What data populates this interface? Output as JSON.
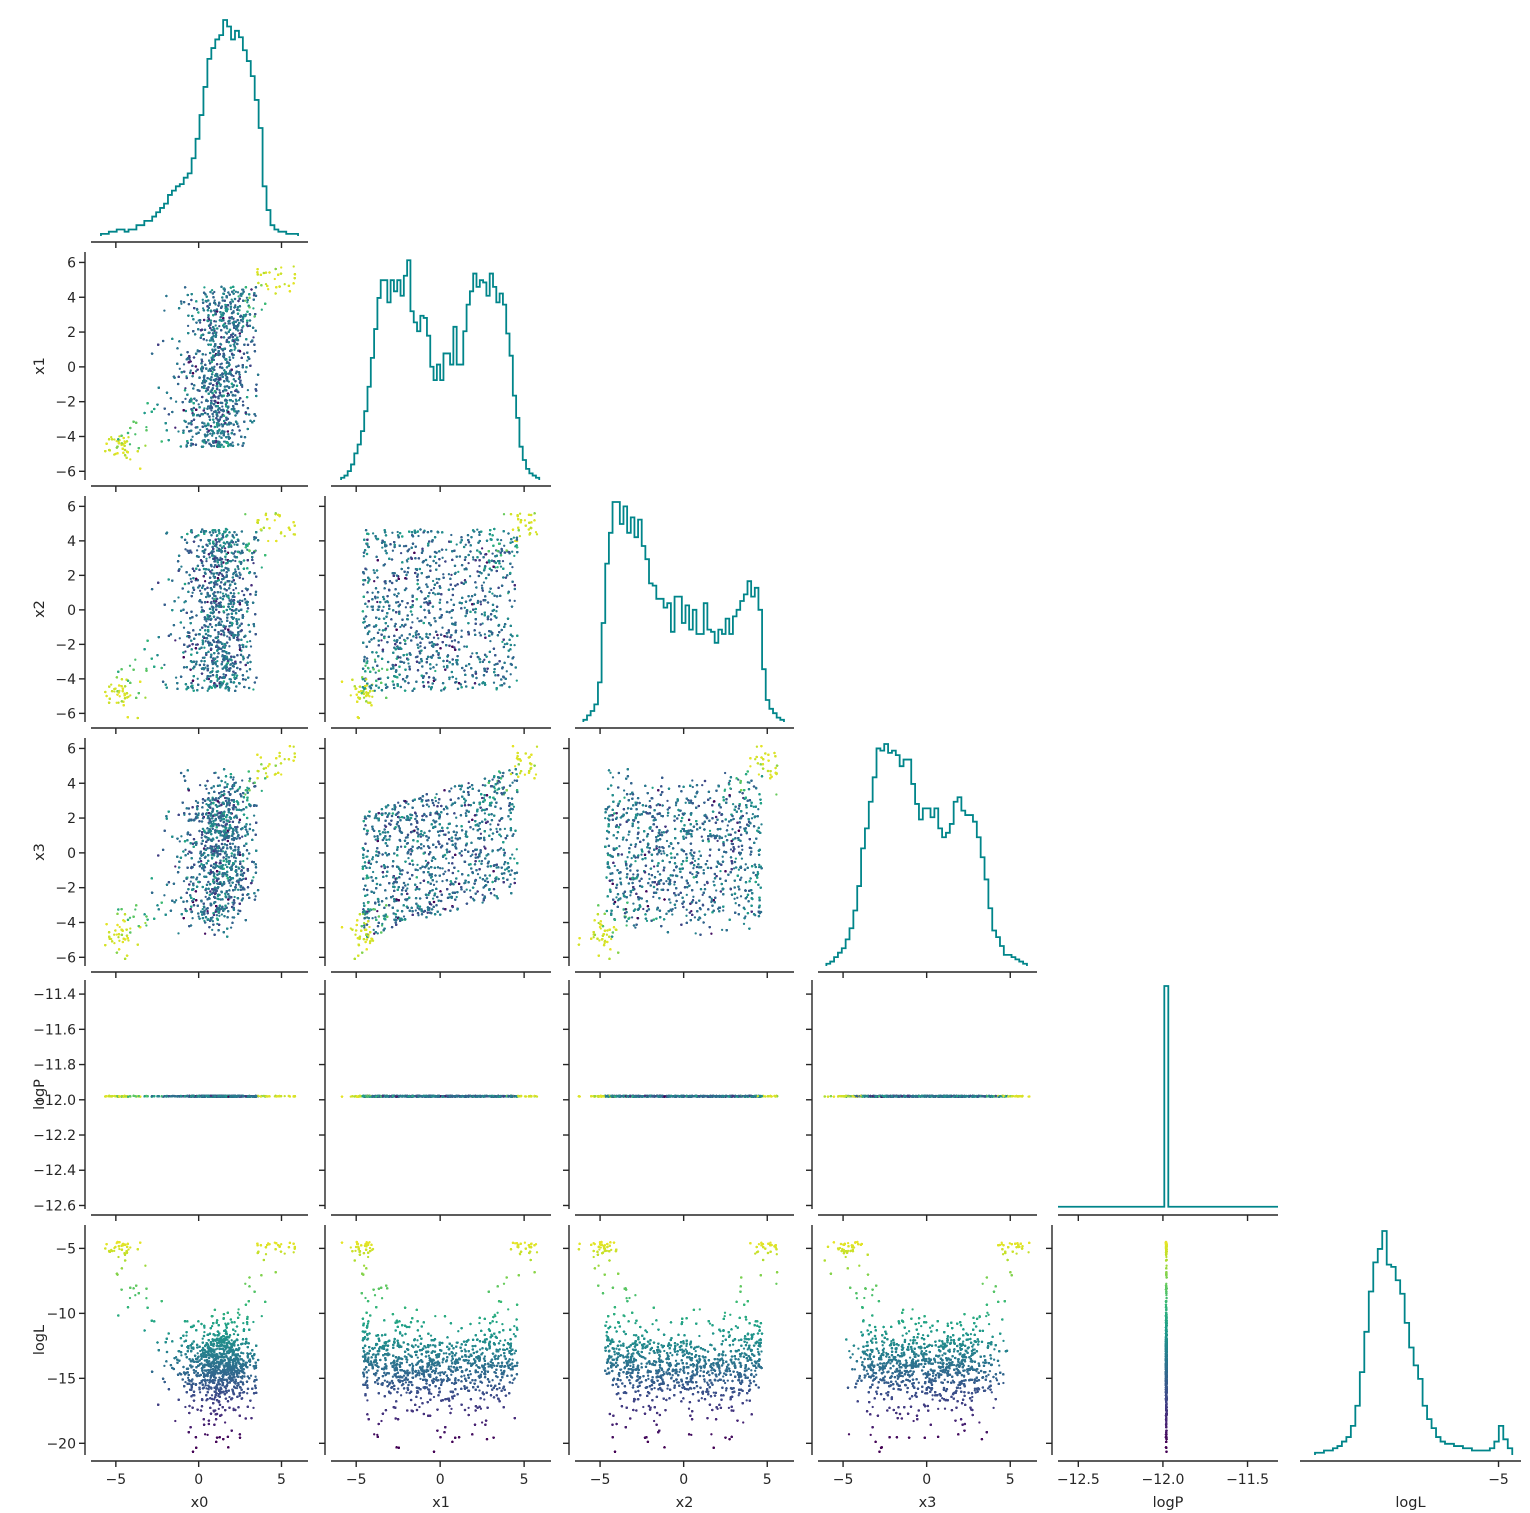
{
  "chart_data": {
    "type": "corner-plot",
    "variables": [
      "x0",
      "x1",
      "x2",
      "x3",
      "logP",
      "logL"
    ],
    "hist_color": "#00858a",
    "scatter_colormap": "viridis",
    "scatter_color_by": "logL",
    "axes": {
      "x0": {
        "range": [
          -6.5,
          6.6
        ],
        "ticks": [
          -5,
          0,
          5
        ],
        "tick_labels": [
          "−5",
          "0",
          "5"
        ]
      },
      "x1": {
        "range": [
          -6.5,
          6.6
        ],
        "ticks": [
          -6,
          -4,
          -2,
          0,
          2,
          4,
          6
        ],
        "tick_labels": [
          "−6",
          "−4",
          "−2",
          "0",
          "2",
          "4",
          "6"
        ],
        "x_tick_labels": [
          "−5",
          "0",
          "5"
        ]
      },
      "x2": {
        "range": [
          -6.5,
          6.6
        ],
        "ticks": [
          -6,
          -4,
          -2,
          0,
          2,
          4,
          6
        ],
        "tick_labels": [
          "−6",
          "−4",
          "−2",
          "0",
          "2",
          "4",
          "6"
        ],
        "x_tick_labels": [
          "−5",
          "0",
          "5"
        ]
      },
      "x3": {
        "range": [
          -6.5,
          6.6
        ],
        "ticks": [
          -6,
          -4,
          -2,
          0,
          2,
          4,
          6
        ],
        "tick_labels": [
          "−6",
          "−4",
          "−2",
          "0",
          "2",
          "4",
          "6"
        ],
        "x_tick_labels": [
          "−5",
          "0",
          "5"
        ]
      },
      "logP": {
        "range": [
          -12.62,
          -11.32
        ],
        "ticks": [
          -12.6,
          -12.4,
          -12.2,
          -12.0,
          -11.8,
          -11.6,
          -11.4
        ],
        "tick_labels": [
          "−12.6",
          "−12.4",
          "−12.2",
          "−12.0",
          "−11.8",
          "−11.6",
          "−11.4"
        ],
        "x_ticks": [
          -12.5,
          -12.0,
          -11.5
        ],
        "x_tick_labels": [
          "−12.5",
          "−12.0",
          "−11.5"
        ],
        "value": -11.98
      },
      "logL": {
        "range": [
          -20.9,
          -3.2
        ],
        "ticks": [
          -20,
          -15,
          -10,
          -5
        ],
        "tick_labels": [
          "−20",
          "−15",
          "−10",
          "−5"
        ]
      }
    },
    "marginals": {
      "x0": {
        "edges_range": [
          -5.9,
          6.0
        ],
        "density": [
          0.01,
          0.01,
          0.02,
          0.02,
          0.03,
          0.03,
          0.02,
          0.03,
          0.03,
          0.05,
          0.05,
          0.07,
          0.07,
          0.09,
          0.11,
          0.13,
          0.15,
          0.19,
          0.21,
          0.23,
          0.24,
          0.27,
          0.29,
          0.36,
          0.45,
          0.56,
          0.69,
          0.82,
          0.87,
          0.91,
          0.93,
          1.0,
          0.97,
          0.91,
          0.95,
          0.92,
          0.86,
          0.81,
          0.74,
          0.63,
          0.5,
          0.23,
          0.12,
          0.05,
          0.03,
          0.02,
          0.02,
          0.01,
          0.01,
          0.01
        ]
      },
      "x1": {
        "edges_range": [
          -5.9,
          5.9
        ],
        "density": [
          0.01,
          0.02,
          0.04,
          0.07,
          0.12,
          0.16,
          0.22,
          0.31,
          0.42,
          0.55,
          0.68,
          0.82,
          0.9,
          0.9,
          0.8,
          0.9,
          0.85,
          0.9,
          0.83,
          0.92,
          0.99,
          0.76,
          0.71,
          0.67,
          0.74,
          0.73,
          0.65,
          0.51,
          0.45,
          0.52,
          0.45,
          0.57,
          0.57,
          0.52,
          0.69,
          0.52,
          0.52,
          0.67,
          0.79,
          0.85,
          0.93,
          0.87,
          0.9,
          0.89,
          0.83,
          0.93,
          0.87,
          0.8,
          0.84,
          0.79,
          0.66,
          0.56,
          0.38,
          0.28,
          0.15,
          0.09,
          0.05,
          0.03,
          0.02,
          0.01
        ]
      },
      "x2": {
        "edges_range": [
          -6.0,
          6.0
        ],
        "density": [
          0.01,
          0.03,
          0.05,
          0.08,
          0.18,
          0.45,
          0.72,
          0.86,
          1.0,
          1.0,
          0.9,
          0.98,
          0.86,
          0.93,
          0.84,
          0.92,
          0.8,
          0.74,
          0.63,
          0.62,
          0.56,
          0.56,
          0.52,
          0.54,
          0.41,
          0.57,
          0.57,
          0.45,
          0.53,
          0.42,
          0.51,
          0.4,
          0.4,
          0.54,
          0.42,
          0.41,
          0.36,
          0.42,
          0.4,
          0.47,
          0.4,
          0.48,
          0.51,
          0.55,
          0.58,
          0.64,
          0.57,
          0.61,
          0.51,
          0.24,
          0.1,
          0.06,
          0.04,
          0.02,
          0.01
        ]
      },
      "x3": {
        "edges_range": [
          -6.0,
          6.0
        ],
        "density": [
          0.01,
          0.02,
          0.04,
          0.06,
          0.08,
          0.12,
          0.17,
          0.25,
          0.36,
          0.53,
          0.62,
          0.74,
          0.85,
          0.98,
          0.97,
          1.0,
          0.96,
          0.97,
          0.95,
          0.9,
          0.93,
          0.93,
          0.82,
          0.73,
          0.66,
          0.71,
          0.71,
          0.67,
          0.71,
          0.62,
          0.58,
          0.6,
          0.64,
          0.74,
          0.76,
          0.7,
          0.68,
          0.68,
          0.65,
          0.58,
          0.49,
          0.39,
          0.26,
          0.16,
          0.13,
          0.09,
          0.05,
          0.05,
          0.04,
          0.03,
          0.02,
          0.01
        ]
      },
      "logP": {
        "spike_at": -11.98,
        "baseline": 0.01
      },
      "logL": {
        "edges_range": [
          -19.7,
          -3.9
        ],
        "density": [
          0.01,
          0.01,
          0.02,
          0.02,
          0.03,
          0.04,
          0.06,
          0.08,
          0.13,
          0.22,
          0.37,
          0.55,
          0.73,
          0.86,
          0.92,
          1.0,
          0.85,
          0.84,
          0.78,
          0.72,
          0.59,
          0.48,
          0.4,
          0.34,
          0.22,
          0.16,
          0.12,
          0.08,
          0.06,
          0.05,
          0.05,
          0.04,
          0.04,
          0.03,
          0.03,
          0.02,
          0.02,
          0.02,
          0.02,
          0.03,
          0.06,
          0.13,
          0.07,
          0.03
        ]
      }
    }
  }
}
